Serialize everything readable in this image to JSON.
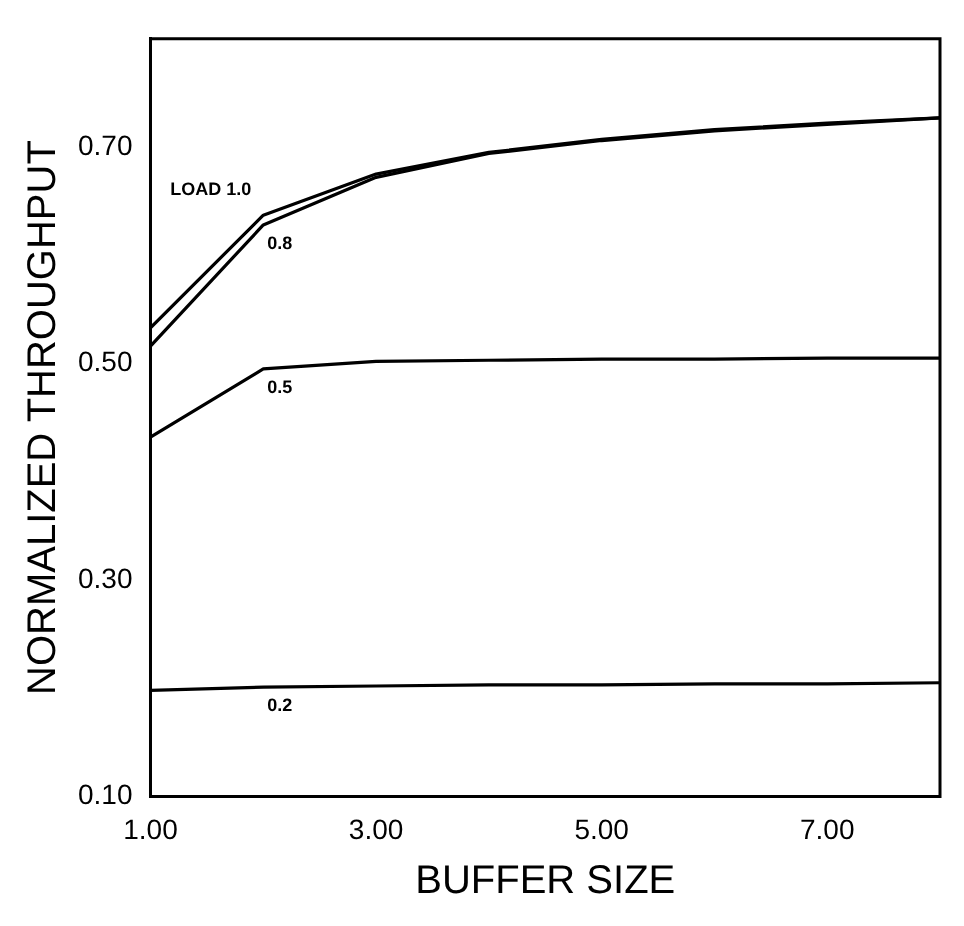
{
  "chart_data": {
    "type": "line",
    "xlabel": "BUFFER SIZE",
    "ylabel": "NORMALIZED THROUGHPUT",
    "x": [
      1,
      2,
      3,
      4,
      5,
      6,
      7,
      8
    ],
    "series": [
      {
        "name": "LOAD 1.0",
        "color": "#000000",
        "values": [
          0.533,
          0.637,
          0.675,
          0.695,
          0.707,
          0.716,
          0.722,
          0.727
        ]
      },
      {
        "name": "0.8",
        "color": "#000000",
        "values": [
          0.516,
          0.628,
          0.672,
          0.694,
          0.706,
          0.715,
          0.721,
          0.727
        ]
      },
      {
        "name": "0.5",
        "color": "#000000",
        "values": [
          0.432,
          0.495,
          0.502,
          0.503,
          0.504,
          0.504,
          0.505,
          0.505
        ]
      },
      {
        "name": "0.2",
        "color": "#000000",
        "values": [
          0.198,
          0.201,
          0.202,
          0.203,
          0.203,
          0.204,
          0.204,
          0.205
        ]
      }
    ],
    "xlim": [
      1,
      8
    ],
    "xticks": [
      {
        "value": 1,
        "label": "1.00"
      },
      {
        "value": 3,
        "label": "3.00"
      },
      {
        "value": 5,
        "label": "5.00"
      },
      {
        "value": 7,
        "label": "7.00"
      }
    ],
    "ylim": [
      0.1,
      0.8
    ],
    "yticks": [
      {
        "value": 0.1,
        "label": "0.10"
      },
      {
        "value": 0.3,
        "label": "0.30"
      },
      {
        "value": 0.5,
        "label": "0.50"
      },
      {
        "value": 0.7,
        "label": "0.70"
      }
    ],
    "grid": false,
    "legend": false,
    "marker": "none",
    "line_style": "solid"
  }
}
